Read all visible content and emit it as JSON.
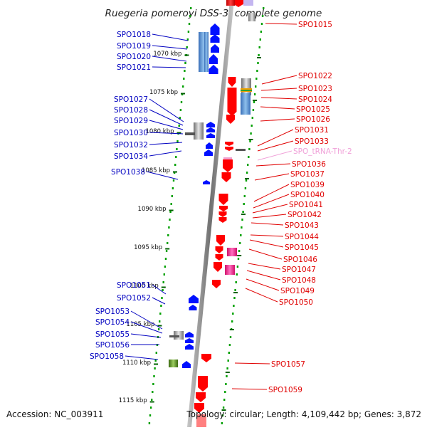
{
  "title": "Ruegeria pomeroyi DSS-3, complete genome",
  "accession": "Accession: NC_003911",
  "topology": "Topology: circular; Length: 4,109,442 bp; Genes: 3,872",
  "colors": {
    "left_label": "#0000c0",
    "right_label": "#e00000",
    "trna_label": "#f0a0d8",
    "left_gene": "#0010ff",
    "right_gene": "#ff0000",
    "axis": "#808080",
    "grid_dots": "#00a000",
    "ticks": "#006000",
    "pink_gene": "#ff1493"
  },
  "kbp_ticks": [
    {
      "label": "1070 kbp"
    },
    {
      "label": "1075 kbp"
    },
    {
      "label": "1080 kbp"
    },
    {
      "label": "1085 kbp"
    },
    {
      "label": "1090 kbp"
    },
    {
      "label": "1095 kbp"
    },
    {
      "label": "1100 kbp"
    },
    {
      "label": "1105 kbp"
    },
    {
      "label": "1110 kbp"
    },
    {
      "label": "1115 kbp"
    }
  ],
  "left_genes": [
    "SPO1018",
    "SPO1019",
    "SPO1020",
    "SPO1021",
    "SPO1027",
    "SPO1028",
    "SPO1029",
    "SPO1030",
    "SPO1032",
    "SPO1034",
    "SPO1038",
    "SPO1051",
    "SPO1052",
    "SPO1053",
    "SPO1054",
    "SPO1055",
    "SPO1056",
    "SPO1058"
  ],
  "right_genes": [
    "SPO1015",
    "SPO1022",
    "SPO1023",
    "SPO1024",
    "SPO1025",
    "SPO1026",
    "SPO1031",
    "SPO1033",
    "SPO_tRNA-Thr-2",
    "SPO1036",
    "SPO1037",
    "SPO1039",
    "SPO1040",
    "SPO1041",
    "SPO1042",
    "SPO1043",
    "SPO1044",
    "SPO1045",
    "SPO1046",
    "SPO1047",
    "SPO1048",
    "SPO1049",
    "SPO1050",
    "SPO1057",
    "SPO1059"
  ]
}
